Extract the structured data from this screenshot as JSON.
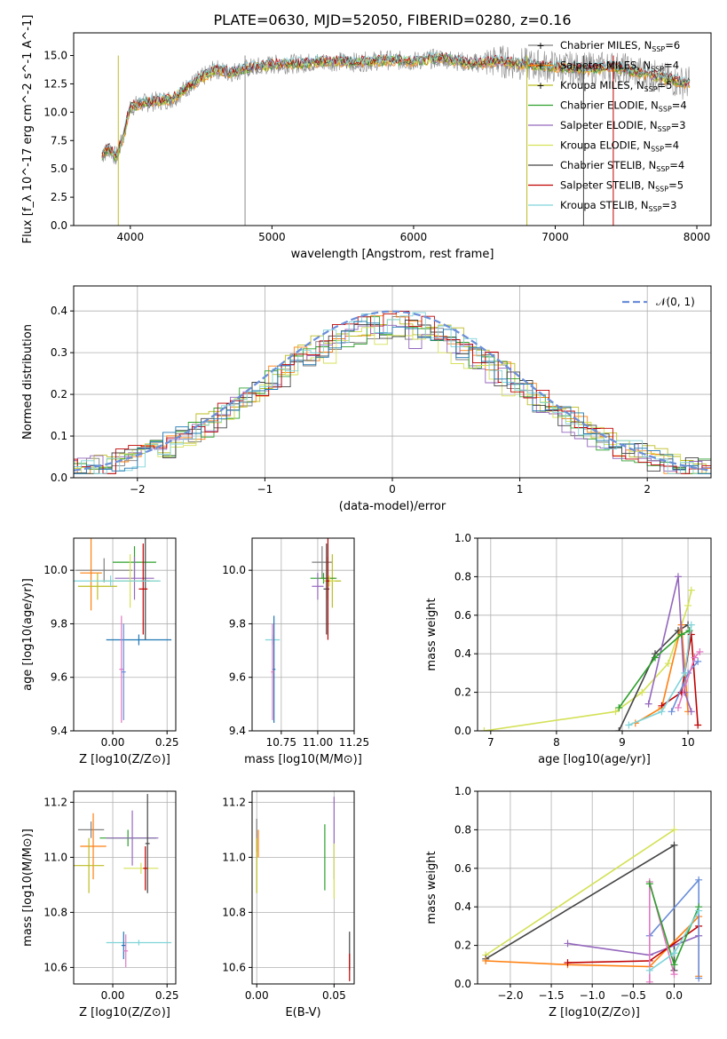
{
  "figure_title": "PLATE=0630, MJD=52050, FIBERID=0280, z=0.16",
  "colors": {
    "models": [
      "#7f7f7f",
      "#ff7f0e",
      "#bcbd22",
      "#2ca02c",
      "#9467bd",
      "#d4e157",
      "#444444",
      "#c00000",
      "#7fd4d9"
    ],
    "extra": [
      "#1f77b4",
      "#e377c2",
      "#6a8ed9"
    ]
  },
  "chart_data": [
    {
      "id": "spectrum",
      "type": "line",
      "title": "PLATE=0630, MJD=52050, FIBERID=0280, z=0.16",
      "xlabel": "wavelength [Angstrom, rest frame]",
      "ylabel": "Flux [f_λ 10^-17 erg cm^-2 s^-1 A^-1]",
      "xlim": [
        3600,
        8100
      ],
      "ylim": [
        0,
        17
      ],
      "xticks": [
        4000,
        5000,
        6000,
        7000,
        8000
      ],
      "yticks": [
        0.0,
        2.5,
        5.0,
        7.5,
        10.0,
        12.5,
        15.0
      ],
      "ytick_labels": [
        "0.0",
        "2.5",
        "5.0",
        "7.5",
        "10.0",
        "12.5",
        "15.0"
      ],
      "grid": false,
      "legend": "top-right",
      "series": [
        {
          "name": "Chabrier MILES, N_SSP=6",
          "marker": "+"
        },
        {
          "name": "Salpeter MILES, N_SSP=4",
          "marker": "+"
        },
        {
          "name": "Kroupa MILES, N_SSP=5",
          "marker": "+"
        },
        {
          "name": "Chabrier ELODIE, N_SSP=4"
        },
        {
          "name": "Salpeter ELODIE, N_SSP=3"
        },
        {
          "name": "Kroupa ELODIE, N_SSP=4"
        },
        {
          "name": "Chabrier STELIB, N_SSP=4"
        },
        {
          "name": "Salpeter STELIB, N_SSP=5"
        },
        {
          "name": "Kroupa STELIB, N_SSP=3"
        }
      ],
      "legend_labels": [
        [
          "Chabrier MILES, N",
          "SSP",
          "=6"
        ],
        [
          "Salpeter MILES, N",
          "SSP",
          "=4"
        ],
        [
          "Kroupa MILES, N",
          "SSP",
          "=5"
        ],
        [
          "Chabrier ELODIE, N",
          "SSP",
          "=4"
        ],
        [
          "Salpeter ELODIE, N",
          "SSP",
          "=3"
        ],
        [
          "Kroupa ELODIE, N",
          "SSP",
          "=4"
        ],
        [
          "Chabrier STELIB, N",
          "SSP",
          "=4"
        ],
        [
          "Salpeter STELIB, N",
          "SSP",
          "=5"
        ],
        [
          "Kroupa STELIB, N",
          "SSP",
          "=3"
        ]
      ],
      "continuum": {
        "x": [
          3800,
          3850,
          3900,
          3950,
          4000,
          4100,
          4200,
          4300,
          4400,
          4500,
          4600,
          4700,
          4800,
          4900,
          5000,
          5200,
          5400,
          5600,
          5800,
          6000,
          6200,
          6400,
          6600,
          6800,
          7000,
          7200,
          7400,
          7600,
          7800,
          7900
        ],
        "y": [
          6.2,
          6.8,
          6.0,
          7.8,
          10.5,
          10.8,
          11.0,
          11.2,
          12.2,
          13.0,
          13.8,
          13.5,
          13.8,
          14.0,
          14.2,
          14.3,
          14.5,
          14.4,
          14.6,
          14.5,
          14.8,
          14.3,
          14.5,
          14.2,
          14.0,
          13.8,
          14.0,
          13.5,
          12.9,
          12.6
        ]
      }
    },
    {
      "id": "residuals",
      "type": "line",
      "xlabel": "(data-model)/error",
      "ylabel": "Normed distribution",
      "xlim": [
        -2.5,
        2.5
      ],
      "ylim": [
        0,
        0.46
      ],
      "xticks": [
        -2,
        -1,
        0,
        1,
        2
      ],
      "xtick_labels": [
        "−2",
        "−1",
        "0",
        "1",
        "2"
      ],
      "yticks": [
        0.0,
        0.1,
        0.2,
        0.3,
        0.4
      ],
      "ytick_labels": [
        "0.0",
        "0.1",
        "0.2",
        "0.3",
        "0.4"
      ],
      "grid": true,
      "legend": "top-right",
      "legend_label": "𝒩(0, 1)",
      "reference": {
        "type": "normal",
        "mean": 0,
        "sigma": 1
      },
      "bin_width": 0.1
    },
    {
      "id": "z_age",
      "type": "errorbar",
      "xlabel": "Z [log10(Z/Z⊙)]",
      "ylabel": "age  [log10(age/yr)]",
      "xlim": [
        -0.18,
        0.29
      ],
      "ylim": [
        9.4,
        10.12
      ],
      "xticks": [
        0.0,
        0.25
      ],
      "xtick_labels": [
        "0.00",
        "0.25"
      ],
      "yticks": [
        9.4,
        9.6,
        9.8,
        10.0
      ],
      "ytick_labels": [
        "9.4",
        "9.6",
        "9.8",
        "10.0"
      ],
      "grid": true,
      "points": [
        {
          "x": -0.04,
          "xerr": 0.13,
          "y": 10.0,
          "yerr": 0.045
        },
        {
          "x": -0.1,
          "xerr": 0.05,
          "y": 9.99,
          "yerr": 0.14
        },
        {
          "x": -0.07,
          "xerr": 0.09,
          "y": 9.94,
          "yerr": 0.05
        },
        {
          "x": 0.1,
          "xerr": 0.1,
          "y": 10.03,
          "yerr": 0.06
        },
        {
          "x": 0.1,
          "xerr": 0.09,
          "y": 9.97,
          "yerr": 0.08
        },
        {
          "x": 0.08,
          "xerr": 0.13,
          "y": 9.96,
          "yerr": 0.1
        },
        {
          "x": 0.15,
          "xerr": 0.02,
          "y": 9.96,
          "yerr": 0.22
        },
        {
          "x": 0.14,
          "xerr": 0.02,
          "y": 9.93,
          "yerr": 0.17
        },
        {
          "x": -0.01,
          "xerr": 0.23,
          "y": 9.96,
          "yerr": 0.02
        },
        {
          "x": 0.12,
          "xerr": 0.15,
          "y": 9.74,
          "yerr": 0.02
        },
        {
          "x": 0.04,
          "xerr": 0.01,
          "y": 9.63,
          "yerr": 0.2
        },
        {
          "x": 0.05,
          "xerr": 0.01,
          "y": 9.62,
          "yerr": 0.18
        }
      ]
    },
    {
      "id": "mass_age",
      "type": "errorbar",
      "xlabel": "mass [log10(M/M⊙)]",
      "xlim": [
        10.55,
        11.25
      ],
      "ylim": [
        9.4,
        10.12
      ],
      "xticks": [
        10.75,
        11.0,
        11.25
      ],
      "xtick_labels": [
        "10.75",
        "11.00",
        "11.25"
      ],
      "yticks": [
        9.4,
        9.6,
        9.8,
        10.0
      ],
      "ytick_labels": [
        "9.4",
        "9.6",
        "9.8",
        "10.0"
      ],
      "grid": true,
      "points": [
        {
          "x": 11.03,
          "xerr": 0.07,
          "y": 10.03,
          "yerr": 0.06
        },
        {
          "x": 11.07,
          "xerr": 0.05,
          "y": 9.97,
          "yerr": 0.08
        },
        {
          "x": 11.1,
          "xerr": 0.06,
          "y": 9.96,
          "yerr": 0.1
        },
        {
          "x": 11.04,
          "xerr": 0.09,
          "y": 9.97,
          "yerr": 0.02
        },
        {
          "x": 11.0,
          "xerr": 0.04,
          "y": 9.94,
          "yerr": 0.05
        },
        {
          "x": 11.08,
          "xerr": 0.04,
          "y": 9.96,
          "yerr": 0.02
        },
        {
          "x": 11.06,
          "xerr": 0.02,
          "y": 9.93,
          "yerr": 0.17
        },
        {
          "x": 11.07,
          "xerr": 0.01,
          "y": 9.96,
          "yerr": 0.22
        },
        {
          "x": 10.69,
          "xerr": 0.05,
          "y": 9.74,
          "yerr": 0.02
        },
        {
          "x": 10.7,
          "xerr": 0.01,
          "y": 9.63,
          "yerr": 0.2
        },
        {
          "x": 10.69,
          "xerr": 0.01,
          "y": 9.62,
          "yerr": 0.18
        }
      ]
    },
    {
      "id": "age_weight",
      "type": "line",
      "xlabel": "age  [log10(age/yr)]",
      "ylabel": "mass weight",
      "xlim": [
        6.8,
        10.35
      ],
      "ylim": [
        0,
        1.0
      ],
      "xticks": [
        7,
        8,
        9,
        10
      ],
      "xtick_labels": [
        "7",
        "8",
        "9",
        "10"
      ],
      "yticks": [
        0.0,
        0.2,
        0.4,
        0.6,
        0.8,
        1.0
      ],
      "ytick_labels": [
        "0.0",
        "0.2",
        "0.4",
        "0.6",
        "0.8",
        "1.0"
      ],
      "grid": true,
      "series": [
        {
          "x": [
            6.9,
            8.9,
            9.3,
            9.7,
            10.0,
            10.05
          ],
          "y": [
            0.0,
            0.1,
            0.2,
            0.35,
            0.65,
            0.73
          ]
        },
        {
          "x": [
            8.95,
            9.5,
            9.85,
            10.0
          ],
          "y": [
            0.0,
            0.4,
            0.52,
            0.55
          ]
        },
        {
          "x": [
            9.2,
            9.6,
            9.9,
            10.0
          ],
          "y": [
            0.04,
            0.12,
            0.55,
            0.1
          ]
        },
        {
          "x": [
            9.4,
            9.85,
            9.95,
            10.05
          ],
          "y": [
            0.14,
            0.8,
            0.2,
            0.1
          ]
        },
        {
          "x": [
            9.6,
            9.9,
            10.05,
            10.15
          ],
          "y": [
            0.13,
            0.2,
            0.5,
            0.03
          ]
        },
        {
          "x": [
            9.75,
            10.0,
            10.15
          ],
          "y": [
            0.1,
            0.3,
            0.36
          ]
        },
        {
          "x": [
            9.85,
            10.1,
            10.18
          ],
          "y": [
            0.12,
            0.38,
            0.41
          ]
        },
        {
          "x": [
            8.95,
            9.5,
            9.9,
            10.02
          ],
          "y": [
            0.12,
            0.38,
            0.5,
            0.52
          ]
        },
        {
          "x": [
            9.1,
            9.6,
            9.95,
            10.05
          ],
          "y": [
            0.03,
            0.1,
            0.3,
            0.55
          ]
        }
      ]
    },
    {
      "id": "z_mass",
      "type": "errorbar",
      "xlabel": "Z [log10(Z/Z⊙)]",
      "ylabel": "mass [log10(M/M⊙)]",
      "xlim": [
        -0.18,
        0.29
      ],
      "ylim": [
        10.54,
        11.24
      ],
      "xticks": [
        0.0,
        0.25
      ],
      "xtick_labels": [
        "0.00",
        "0.25"
      ],
      "yticks": [
        10.6,
        10.8,
        11.0,
        11.2
      ],
      "ytick_labels": [
        "10.6",
        "10.8",
        "11.0",
        "11.2"
      ],
      "grid": true,
      "points": [
        {
          "x": -0.1,
          "xerr": 0.06,
          "y": 11.1,
          "yerr": 0.03
        },
        {
          "x": -0.09,
          "xerr": 0.06,
          "y": 11.04,
          "yerr": 0.12
        },
        {
          "x": -0.11,
          "xerr": 0.07,
          "y": 10.97,
          "yerr": 0.1
        },
        {
          "x": 0.07,
          "xerr": 0.13,
          "y": 11.07,
          "yerr": 0.03
        },
        {
          "x": 0.09,
          "xerr": 0.12,
          "y": 11.07,
          "yerr": 0.1
        },
        {
          "x": 0.13,
          "xerr": 0.08,
          "y": 10.96,
          "yerr": 0.02
        },
        {
          "x": 0.16,
          "xerr": 0.01,
          "y": 11.05,
          "yerr": 0.18
        },
        {
          "x": 0.15,
          "xerr": 0.01,
          "y": 10.96,
          "yerr": 0.08
        },
        {
          "x": 0.12,
          "xerr": 0.15,
          "y": 10.69,
          "yerr": 0.01
        },
        {
          "x": 0.05,
          "xerr": 0.01,
          "y": 10.68,
          "yerr": 0.05
        },
        {
          "x": 0.06,
          "xerr": 0.01,
          "y": 10.66,
          "yerr": 0.06
        }
      ]
    },
    {
      "id": "ebv_mass",
      "type": "errorbar",
      "xlabel": "E(B-V)",
      "xlim": [
        -0.003,
        0.063
      ],
      "ylim": [
        10.54,
        11.24
      ],
      "xticks": [
        0.0,
        0.05
      ],
      "xtick_labels": [
        "0.00",
        "0.05"
      ],
      "yticks": [
        10.6,
        10.8,
        11.0,
        11.2
      ],
      "ytick_labels": [
        "10.6",
        "10.8",
        "11.0",
        "11.2"
      ],
      "grid": true,
      "points": [
        {
          "x": 0.0,
          "y": 11.08,
          "yerr": 0.06
        },
        {
          "x": 0.001,
          "y": 11.05,
          "yerr": 0.05
        },
        {
          "x": 0.0,
          "y": 10.97,
          "yerr": 0.1
        },
        {
          "x": 0.044,
          "y": 11.0,
          "yerr": 0.12
        },
        {
          "x": 0.05,
          "y": 11.07,
          "yerr": 0.15
        },
        {
          "x": 0.05,
          "y": 10.95,
          "yerr": 0.1
        },
        {
          "x": 0.06,
          "y": 10.66,
          "yerr": 0.07
        },
        {
          "x": 0.06,
          "y": 10.6,
          "yerr": 0.05
        }
      ]
    },
    {
      "id": "z_weight",
      "type": "line",
      "xlabel": "Z [log10(Z/Z⊙)]",
      "ylabel": "mass weight",
      "xlim": [
        -2.4,
        0.45
      ],
      "ylim": [
        0,
        1.0
      ],
      "xticks": [
        -2.0,
        -1.5,
        -1.0,
        -0.5,
        0.0
      ],
      "xtick_labels": [
        "−2.0",
        "−1.5",
        "−1.0",
        "−0.5",
        "0.0"
      ],
      "yticks": [
        0.0,
        0.2,
        0.4,
        0.6,
        0.8,
        1.0
      ],
      "ytick_labels": [
        "0.0",
        "0.2",
        "0.4",
        "0.6",
        "0.8",
        "1.0"
      ],
      "grid": true,
      "series": [
        {
          "x": [
            -2.3,
            0.0
          ],
          "y": [
            0.15,
            0.8
          ]
        },
        {
          "x": [
            -2.3,
            0.0,
            0.0
          ],
          "y": [
            0.13,
            0.72,
            0.07
          ]
        },
        {
          "x": [
            -2.3,
            -1.3,
            -0.3,
            0.3,
            0.3
          ],
          "y": [
            0.12,
            0.1,
            0.09,
            0.35,
            0.04
          ]
        },
        {
          "x": [
            -1.3,
            -0.3,
            0.3
          ],
          "y": [
            0.21,
            0.15,
            0.25
          ]
        },
        {
          "x": [
            -1.3,
            -0.3,
            0.3
          ],
          "y": [
            0.11,
            0.12,
            0.3
          ]
        },
        {
          "x": [
            -0.3,
            0.3,
            0.3
          ],
          "y": [
            0.25,
            0.54,
            0.03
          ]
        },
        {
          "x": [
            -0.3,
            -0.3,
            0.0
          ],
          "y": [
            0.01,
            0.53,
            0.05
          ]
        },
        {
          "x": [
            -0.3,
            0.0,
            0.3
          ],
          "y": [
            0.52,
            0.1,
            0.4
          ]
        },
        {
          "x": [
            -0.3,
            0.0,
            0.3
          ],
          "y": [
            0.07,
            0.16,
            0.38
          ]
        }
      ]
    }
  ]
}
